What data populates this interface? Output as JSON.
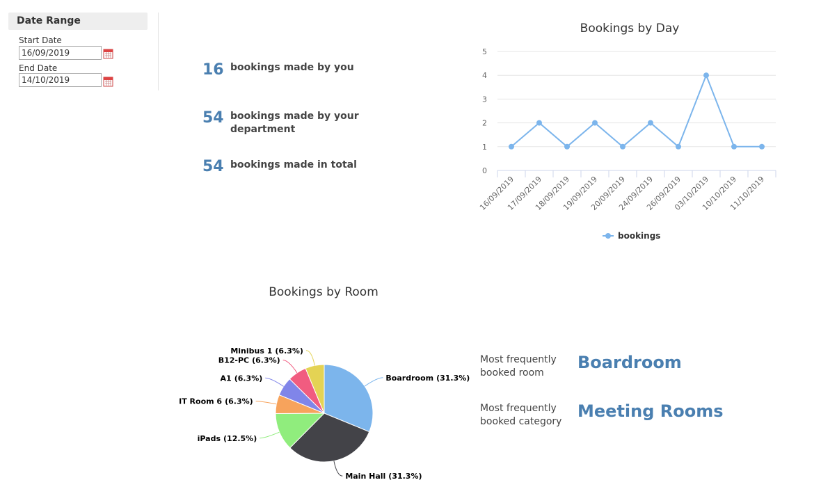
{
  "date_range": {
    "title": "Date Range",
    "start_label": "Start Date",
    "start_value": "16/09/2019",
    "end_label": "End Date",
    "end_value": "14/10/2019"
  },
  "stats": [
    {
      "value": 16,
      "label": "bookings made by you"
    },
    {
      "value": 54,
      "label": "bookings made by your department"
    },
    {
      "value": 54,
      "label": "bookings made in total"
    }
  ],
  "most_frequent": [
    {
      "label": "Most frequently booked room",
      "value": "Boardroom"
    },
    {
      "label": "Most frequently booked category",
      "value": "Meeting Rooms"
    }
  ],
  "chart_data": [
    {
      "type": "line",
      "title": "Bookings by Day",
      "categories": [
        "16/09/2019",
        "17/09/2019",
        "18/09/2019",
        "19/09/2019",
        "20/09/2019",
        "24/09/2019",
        "26/09/2019",
        "03/10/2019",
        "10/10/2019",
        "11/10/2019"
      ],
      "series": [
        {
          "name": "bookings",
          "color": "#7cb5ec",
          "values": [
            1,
            2,
            1,
            2,
            1,
            2,
            1,
            4,
            1,
            1
          ]
        }
      ],
      "ylim": [
        0,
        5
      ],
      "yticks": [
        0,
        1,
        2,
        3,
        4,
        5
      ],
      "grid": true,
      "legend": "bottom"
    },
    {
      "type": "pie",
      "title": "Bookings by Room",
      "categories": [
        "Boardroom",
        "Main Hall",
        "iPads",
        "IT Room 6",
        "A1",
        "B12-PC",
        "Minibus 1"
      ],
      "values": [
        31.3,
        31.3,
        12.5,
        6.3,
        6.3,
        6.3,
        6.3
      ],
      "value_labels": [
        "(31.3%)",
        "(31.3%)",
        "(12.5%)",
        "(6.3%)",
        "(6.3%)",
        "(6.3%)",
        "(6.3%)"
      ],
      "colors": [
        "#7cb5ec",
        "#434348",
        "#90ed7d",
        "#f7a35c",
        "#8085e9",
        "#f15c80",
        "#e4d354"
      ]
    }
  ]
}
